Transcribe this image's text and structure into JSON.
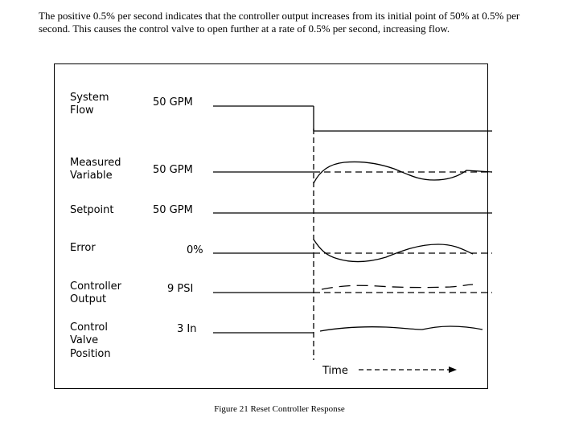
{
  "intro_text": "The positive 0.5% per second indicates that the controller output increases from its initial point of 50% at 0.5% per second.   This causes the control valve to open further at a rate of 0.5% per second, increasing flow.",
  "rows": [
    {
      "label": [
        "System",
        "Flow"
      ],
      "value": "50  GPM"
    },
    {
      "label": [
        "Measured",
        "Variable"
      ],
      "value": "50  GPM"
    },
    {
      "label": [
        "Setpoint"
      ],
      "value": "50  GPM"
    },
    {
      "label": [
        "Error"
      ],
      "value": "0%"
    },
    {
      "label": [
        "Controller",
        "Output"
      ],
      "value": "9  PSI"
    },
    {
      "label": [
        "Control",
        "Valve",
        "Position"
      ],
      "value": "3  In"
    }
  ],
  "time_axis_label": "Time",
  "caption": "Figure 21 Reset Controller Response"
}
